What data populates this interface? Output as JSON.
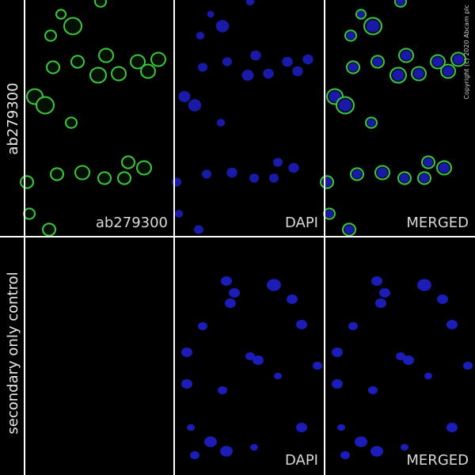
{
  "rows": [
    {
      "label": "ab279300",
      "panels": [
        "ab279300",
        "DAPI",
        "MERGED"
      ]
    },
    {
      "label": "secondary only control",
      "panels": [
        "DAPI",
        "MERGED"
      ]
    }
  ],
  "copyright": "Copyright (c) 2020 Abcam plc"
}
